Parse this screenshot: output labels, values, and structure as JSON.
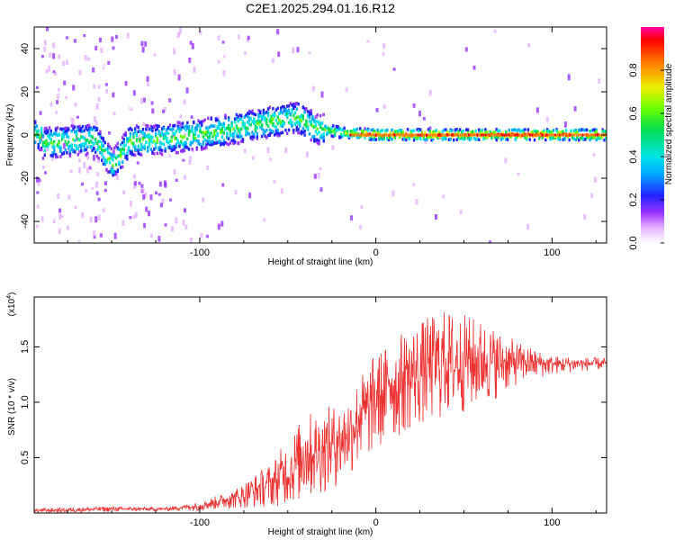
{
  "title": "C2E1.2025.294.01.16.R12",
  "chart_data": [
    {
      "type": "heatmap",
      "name": "spectrogram",
      "xlabel": "Height of straight line (km)",
      "ylabel": "Frequency (Hz)",
      "xlim": [
        -194,
        131
      ],
      "ylim": [
        -50,
        50
      ],
      "xticks": [
        -100,
        0,
        100
      ],
      "yticks": [
        -40,
        -20,
        0,
        20,
        40
      ],
      "colorbar": {
        "label": "Normalized spectral amplitude",
        "range": [
          0,
          1
        ],
        "ticks": [
          "0.0",
          "0.2",
          "0.4",
          "0.6",
          "0.8"
        ]
      },
      "ridge": [
        {
          "x": -190,
          "y": -4
        },
        {
          "x": -175,
          "y": -3
        },
        {
          "x": -160,
          "y": -2
        },
        {
          "x": -150,
          "y": -14
        },
        {
          "x": -140,
          "y": -3
        },
        {
          "x": -120,
          "y": -2
        },
        {
          "x": -100,
          "y": 0
        },
        {
          "x": -80,
          "y": 3
        },
        {
          "x": -60,
          "y": 6
        },
        {
          "x": -45,
          "y": 8
        },
        {
          "x": -35,
          "y": 3
        },
        {
          "x": -20,
          "y": 1
        },
        {
          "x": 0,
          "y": 0
        },
        {
          "x": 20,
          "y": 0
        },
        {
          "x": 50,
          "y": 0
        },
        {
          "x": 100,
          "y": 0
        },
        {
          "x": 131,
          "y": 0
        }
      ]
    },
    {
      "type": "line",
      "name": "snr",
      "xlabel": "Height of straight line (km)",
      "ylabel": "SNR (10 * v/v)",
      "y_multiplier": "(x10",
      "y_multiplier_exp": "4",
      "y_multiplier_close": ")",
      "xlim": [
        -194,
        131
      ],
      "ylim": [
        0,
        1.95
      ],
      "xticks": [
        -100,
        0,
        100
      ],
      "yticks": [
        "0.5",
        "1.0",
        "1.5"
      ],
      "color": "#ee3333",
      "envelope": [
        {
          "x": -194,
          "low": 0.0,
          "high": 0.04
        },
        {
          "x": -150,
          "low": 0.01,
          "high": 0.06
        },
        {
          "x": -120,
          "low": 0.02,
          "high": 0.05
        },
        {
          "x": -100,
          "low": 0.02,
          "high": 0.1
        },
        {
          "x": -80,
          "low": 0.04,
          "high": 0.22
        },
        {
          "x": -60,
          "low": 0.05,
          "high": 0.45
        },
        {
          "x": -40,
          "low": 0.1,
          "high": 0.9
        },
        {
          "x": -20,
          "low": 0.25,
          "high": 1.0
        },
        {
          "x": 0,
          "low": 0.55,
          "high": 1.45
        },
        {
          "x": 20,
          "low": 0.75,
          "high": 1.7
        },
        {
          "x": 40,
          "low": 0.85,
          "high": 1.85
        },
        {
          "x": 60,
          "low": 0.95,
          "high": 1.75
        },
        {
          "x": 80,
          "low": 1.15,
          "high": 1.55
        },
        {
          "x": 100,
          "low": 1.25,
          "high": 1.42
        },
        {
          "x": 131,
          "low": 1.3,
          "high": 1.4
        }
      ]
    }
  ]
}
